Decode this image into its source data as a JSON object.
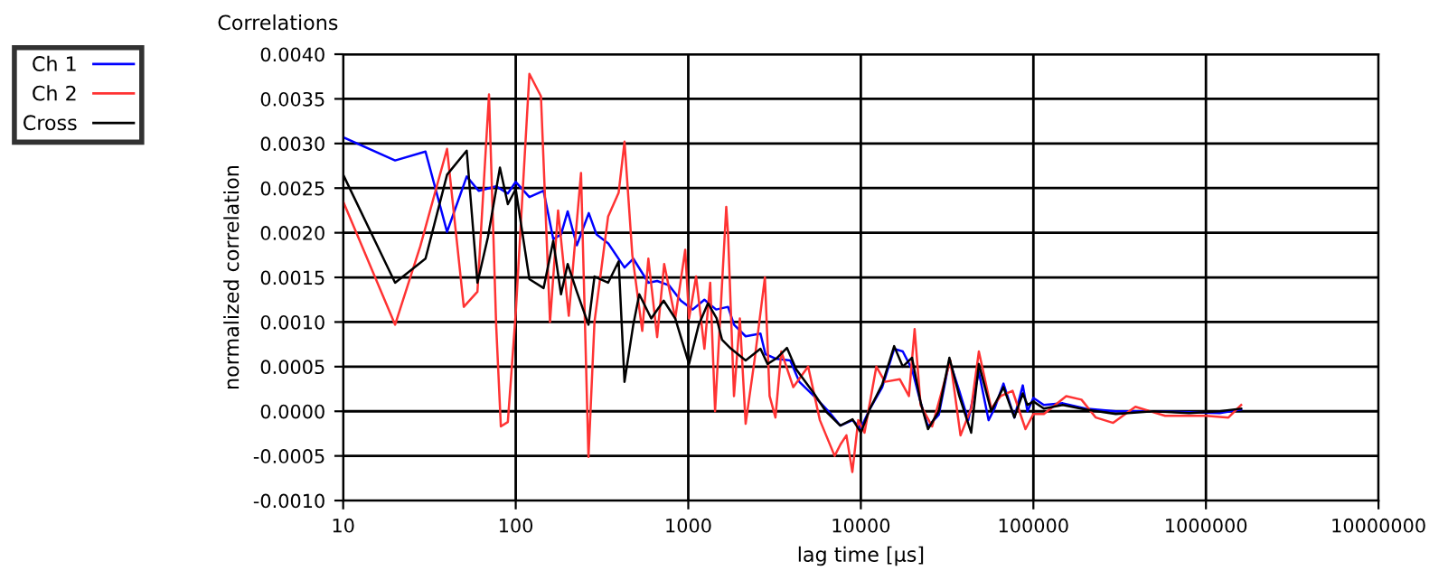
{
  "chart_data": {
    "type": "line",
    "title": "Correlations",
    "xlabel": "lag time [µs]",
    "ylabel": "normalized correlation",
    "log": "x",
    "grid": true,
    "legend": "top left",
    "marker": "none",
    "line_style": "solid",
    "xlim": [
      10,
      10000000
    ],
    "xticks": [
      10,
      100,
      1000,
      10000,
      100000,
      1000000,
      10000000
    ],
    "ylim": [
      -0.001,
      0.004
    ],
    "yticks": [
      {
        "value": -0.001,
        "label": "-0.0010"
      },
      {
        "value": -0.0005,
        "label": "-0.0005"
      },
      {
        "value": 0,
        "label": "0.0000"
      },
      {
        "value": 0.0005,
        "label": "0.0005"
      },
      {
        "value": 0.001,
        "label": "0.0010"
      },
      {
        "value": 0.0015,
        "label": "0.0015"
      },
      {
        "value": 0.002,
        "label": "0.0020"
      },
      {
        "value": 0.0025,
        "label": "0.0025"
      },
      {
        "value": 0.003,
        "label": "0.0030"
      },
      {
        "value": 0.0035,
        "label": "0.0035"
      },
      {
        "value": 0.004,
        "label": "0.0040"
      }
    ],
    "series": [
      {
        "name": "Ch 1",
        "color": "#0000ff",
        "x": [
          10,
          20,
          30,
          40,
          52,
          61,
          77,
          90,
          100,
          120,
          145,
          165,
          183,
          200,
          226,
          265,
          294,
          344,
          427,
          480,
          587,
          660,
          775,
          905,
          1060,
          1240,
          1450,
          1700,
          1840,
          2150,
          2620,
          2800,
          3200,
          3900,
          4400,
          5350,
          6500,
          7600,
          8950,
          10000,
          11300,
          13300,
          15600,
          17500,
          19800,
          22200,
          24500,
          28300,
          32600,
          37200,
          41900,
          48300,
          55000,
          59500,
          67100,
          77600,
          86800,
          92400,
          100000,
          115000,
          148000,
          200000,
          300000,
          500000,
          800000,
          1200000,
          1600000
        ],
        "values": [
          0.00307,
          0.00281,
          0.00291,
          0.00201,
          0.00263,
          0.00247,
          0.00252,
          0.00244,
          0.00257,
          0.0024,
          0.00247,
          0.00193,
          0.00198,
          0.00224,
          0.00186,
          0.00222,
          0.00198,
          0.00188,
          0.00161,
          0.00171,
          0.00144,
          0.00146,
          0.00141,
          0.00124,
          0.00114,
          0.00125,
          0.00114,
          0.00117,
          0.00097,
          0.00084,
          0.00087,
          0.00064,
          0.00059,
          0.00057,
          0.00033,
          0.00017,
          0.0,
          -0.00016,
          -0.0001,
          -0.00019,
          3e-05,
          0.00027,
          0.0007,
          0.00067,
          0.00047,
          0.0001,
          -0.00017,
          -4e-05,
          0.00057,
          0.00023,
          -0.0001,
          0.00044,
          -0.0001,
          3e-05,
          0.00031,
          -7e-05,
          0.00029,
          0.0,
          0.00015,
          7e-05,
          9e-05,
          3e-05,
          0.0,
          0.0,
          -1e-05,
          -2e-05,
          2e-05
        ]
      },
      {
        "name": "Ch 2",
        "color": "#ff3333",
        "x": [
          10,
          20,
          28,
          40,
          50,
          60,
          70,
          77,
          82,
          90,
          100,
          120,
          140,
          158,
          176,
          203,
          239,
          264,
          286,
          343,
          395,
          427,
          474,
          541,
          587,
          660,
          725,
          840,
          960,
          1010,
          1110,
          1240,
          1340,
          1430,
          1660,
          1700,
          1840,
          1990,
          2150,
          2420,
          2780,
          2960,
          3200,
          3460,
          4060,
          4950,
          5790,
          7050,
          7630,
          8250,
          8930,
          9660,
          10500,
          12300,
          13800,
          16800,
          19000,
          20500,
          22200,
          25900,
          33000,
          37800,
          43600,
          48300,
          57000,
          64600,
          75700,
          90000,
          100000,
          115000,
          155000,
          190000,
          230000,
          290000,
          390000,
          580000,
          800000,
          1000000,
          1350000,
          1600000
        ],
        "values": [
          0.00235,
          0.00097,
          0.00185,
          0.00294,
          0.00117,
          0.00134,
          0.00355,
          0.00097,
          -0.00017,
          -0.00012,
          0.0011,
          0.00378,
          0.00353,
          0.001,
          0.00225,
          0.00107,
          0.00267,
          -0.00051,
          0.001,
          0.00218,
          0.00245,
          0.00302,
          0.00175,
          0.0009,
          0.00171,
          0.00083,
          0.00165,
          0.00104,
          0.00181,
          0.00104,
          0.00151,
          0.0007,
          0.00144,
          0.0,
          0.00229,
          0.00199,
          0.00017,
          0.00104,
          -0.00014,
          0.00057,
          0.0015,
          0.00017,
          -7e-05,
          0.00067,
          0.00027,
          0.0005,
          -0.0001,
          -0.0005,
          -0.00037,
          -0.00027,
          -0.00068,
          -0.0001,
          -0.00024,
          0.0005,
          0.00033,
          0.00036,
          0.00017,
          0.00092,
          7e-05,
          -0.00017,
          0.00057,
          -0.00027,
          3e-05,
          0.00067,
          3e-05,
          0.00017,
          0.00023,
          -0.0002,
          -3e-05,
          -3e-05,
          0.00017,
          0.00013,
          -7e-05,
          -0.00013,
          5e-05,
          -5e-05,
          -5e-05,
          -5e-05,
          -7e-05,
          7e-05
        ]
      },
      {
        "name": "Cross",
        "color": "#000000",
        "x": [
          10,
          20,
          30,
          40,
          52,
          60,
          69,
          81,
          90,
          100,
          120,
          145,
          165,
          183,
          200,
          226,
          264,
          286,
          343,
          395,
          427,
          480,
          520,
          610,
          720,
          840,
          1010,
          1150,
          1300,
          1460,
          1570,
          1770,
          2150,
          2620,
          2880,
          3280,
          3730,
          4220,
          5350,
          6270,
          7600,
          8950,
          10000,
          11300,
          13300,
          15600,
          17500,
          19800,
          22200,
          24500,
          28300,
          32600,
          37200,
          43600,
          48300,
          57000,
          67100,
          77600,
          86800,
          92400,
          100000,
          115000,
          148000,
          200000,
          300000,
          500000,
          800000,
          1200000,
          1600000
        ],
        "values": [
          0.00265,
          0.00144,
          0.00171,
          0.00265,
          0.00292,
          0.00144,
          0.00195,
          0.00273,
          0.00232,
          0.00249,
          0.00148,
          0.00138,
          0.00191,
          0.00131,
          0.00165,
          0.00134,
          0.00097,
          0.00151,
          0.00144,
          0.00168,
          0.00033,
          0.00097,
          0.00131,
          0.00104,
          0.00124,
          0.00104,
          0.00053,
          0.00097,
          0.00121,
          0.00104,
          0.0008,
          0.0007,
          0.00057,
          0.0007,
          0.00053,
          0.0006,
          0.00071,
          0.00047,
          0.0002,
          0.0,
          -0.00016,
          -9e-05,
          -0.00024,
          3e-05,
          0.0003,
          0.00073,
          0.0005,
          0.0006,
          0.0001,
          -0.0002,
          0.0,
          0.0006,
          0.00017,
          -0.00024,
          0.00053,
          0.0,
          0.00027,
          -7e-05,
          0.0002,
          7e-05,
          0.00011,
          3e-05,
          7e-05,
          2e-05,
          -3e-05,
          0.0,
          -2e-05,
          0.0,
          3e-05
        ]
      }
    ]
  }
}
